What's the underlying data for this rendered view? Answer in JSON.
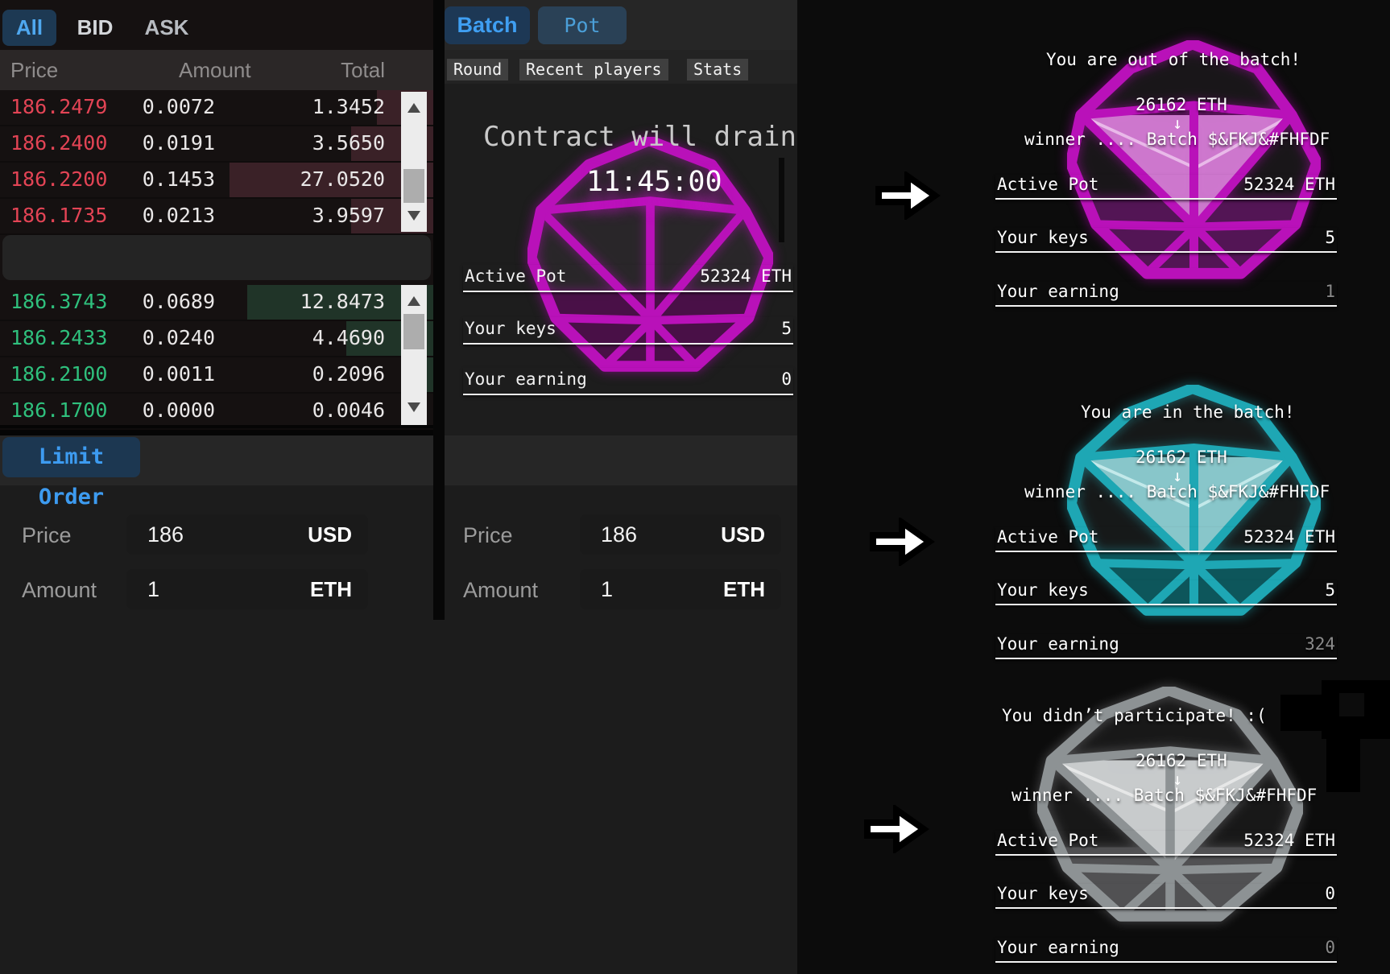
{
  "order_book": {
    "tabs": [
      {
        "label": "All",
        "active": true
      },
      {
        "label": "BID",
        "active": false
      },
      {
        "label": "ASK",
        "active": false
      }
    ],
    "columns": {
      "price": "Price",
      "amount": "Amount",
      "total": "Total"
    },
    "asks": [
      {
        "price": "186.2479",
        "amount": "0.0072",
        "total": "1.3452",
        "depth": 0.13
      },
      {
        "price": "186.2400",
        "amount": "0.0191",
        "total": "3.5650",
        "depth": 0.19
      },
      {
        "price": "186.2200",
        "amount": "0.1453",
        "total": "27.0520",
        "depth": 0.47
      },
      {
        "price": "186.1735",
        "amount": "0.0213",
        "total": "3.9597",
        "depth": 0.19
      }
    ],
    "bids": [
      {
        "price": "186.3743",
        "amount": "0.0689",
        "total": "12.8473",
        "depth": 0.43
      },
      {
        "price": "186.2433",
        "amount": "0.0240",
        "total": "4.4690",
        "depth": 0.2
      },
      {
        "price": "186.2100",
        "amount": "0.0011",
        "total": "0.2096",
        "depth": 0.04
      },
      {
        "price": "186.1700",
        "amount": "0.0000",
        "total": "0.0046",
        "depth": 0.0
      }
    ]
  },
  "limit_order": {
    "label": "Limit Order"
  },
  "order_form": {
    "price_label": "Price",
    "price_value": "186",
    "price_unit": "USD",
    "amount_label": "Amount",
    "amount_value": "1",
    "amount_unit": "ETH"
  },
  "game": {
    "mode_tabs": [
      {
        "label": "Batch",
        "active": true
      },
      {
        "label": "Pot",
        "active": false
      }
    ],
    "sub_tabs": [
      "Round",
      "Recent players",
      "Stats"
    ],
    "headline": "Contract will drain",
    "countdown": "11:45:00",
    "active_pot_label": "Active Pot",
    "active_pot_value": "52324 ETH",
    "your_keys_label": "Your keys",
    "your_keys_value": "5",
    "your_earning_label": "Your earning",
    "your_earning_value": "0"
  },
  "outcomes": [
    {
      "theme": "magenta",
      "title": "You are out of the batch!",
      "pot": "26162 ETH",
      "down_arrow": "↓",
      "winner_line": "winner .... Batch $&FKJ&#FHFDF",
      "active_pot_label": "Active Pot",
      "active_pot_value": "52324 ETH",
      "your_keys_label": "Your keys",
      "your_keys_value": "5",
      "your_earning_label": "Your earning",
      "your_earning_value": "1"
    },
    {
      "theme": "cyan",
      "title": "You are in the batch!",
      "pot": "26162 ETH",
      "down_arrow": "↓",
      "winner_line": "winner .... Batch $&FKJ&#FHFDF",
      "active_pot_label": "Active Pot",
      "active_pot_value": "52324 ETH",
      "your_keys_label": "Your keys",
      "your_keys_value": "5",
      "your_earning_label": "Your earning",
      "your_earning_value": "324"
    },
    {
      "theme": "gray",
      "title": "You didn’t participate! :(",
      "pot": "26162 ETH",
      "down_arrow": "↓",
      "winner_line": "winner .... Batch $&FKJ&#FHFDF",
      "active_pot_label": "Active Pot",
      "active_pot_value": "52324 ETH",
      "your_keys_label": "Your keys",
      "your_keys_value": "0",
      "your_earning_label": "Your earning",
      "your_earning_value": "0"
    }
  ],
  "colors": {
    "accent_blue": "#3f9ff2",
    "ask_red": "#e34455",
    "bid_green": "#2fc07d",
    "magenta": "#b911b9",
    "cyan": "#1ea7b4",
    "gray": "#8d9294"
  }
}
